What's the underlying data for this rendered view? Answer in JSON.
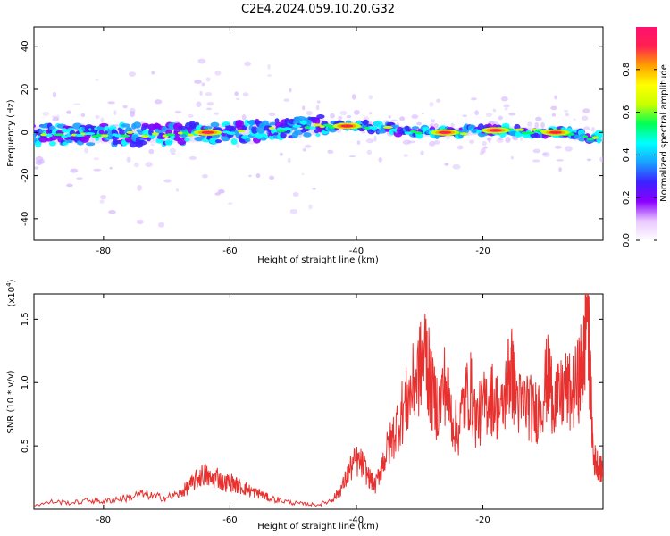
{
  "title": "C2E4.2024.059.10.20.G32",
  "chart_data": [
    {
      "type": "heatmap",
      "xlabel": "Height of straight line (km)",
      "ylabel": "Frequency (Hz)",
      "xlim": [
        -91,
        -1
      ],
      "ylim": [
        -50,
        49
      ],
      "xticks": [
        -80,
        -60,
        -40,
        -20
      ],
      "yticks": [
        -40,
        -20,
        0,
        20,
        40
      ],
      "colorbar": {
        "label": "Normalized spectral amplitude",
        "range": [
          0,
          1
        ],
        "ticks": [
          0.0,
          0.2,
          0.4,
          0.6,
          0.8
        ],
        "colormap": [
          "#ffffff",
          "#e8c8ff",
          "#8a00ff",
          "#3c22ff",
          "#1aa0ff",
          "#00ffff",
          "#00ff55",
          "#c8ff00",
          "#ffff00",
          "#ffa000",
          "#ff2050",
          "#ff1070"
        ]
      },
      "ridge": {
        "description_points_x": [
          -91,
          -80,
          -70,
          -60,
          -50,
          -45,
          -43,
          -40,
          -35,
          -30,
          -25,
          -20,
          -15,
          -10,
          -5,
          -3,
          -1
        ],
        "description_points_y": [
          -1,
          -1,
          -1,
          0,
          2,
          3,
          3,
          3,
          2,
          0,
          0,
          1,
          1,
          0,
          0,
          -3,
          -2
        ],
        "hot_spots_x": [
          -63.5,
          -41.5,
          -26,
          -18,
          -8.5
        ],
        "hot_spots_y": [
          0,
          3,
          0,
          1,
          0
        ]
      }
    },
    {
      "type": "line",
      "xlabel": "Height of straight line (km)",
      "ylabel": "SNR (10 * v/v)",
      "y_multiplier": "(x10",
      "y_multiplier_exp": "4",
      "y_multiplier_close": ")",
      "xlim": [
        -91,
        -1
      ],
      "ylim": [
        0,
        17000
      ],
      "xticks": [
        -80,
        -60,
        -40,
        -20
      ],
      "yticks": [
        5000,
        10000,
        15000
      ],
      "ytick_labels": [
        "0.5",
        "1.0",
        "1.5"
      ],
      "color": "#e8312f",
      "series": [
        {
          "x": [
            -91,
            -88,
            -85,
            -82,
            -80,
            -78,
            -76,
            -74,
            -72,
            -70,
            -68,
            -67,
            -66,
            -65,
            -64,
            -63,
            -62,
            -61,
            -60,
            -59,
            -58,
            -57,
            -56,
            -55,
            -54,
            -52,
            -50,
            -48,
            -46,
            -44,
            -43,
            -42,
            -41,
            -40,
            -39,
            -38,
            -37,
            -36,
            -35,
            -34,
            -33,
            -32,
            -31,
            -30,
            -29,
            -28.5,
            -28,
            -27,
            -26,
            -25,
            -24,
            -23,
            -22,
            -21,
            -20,
            -19,
            -18,
            -17,
            -16,
            -15.5,
            -15,
            -14,
            -13,
            -12,
            -11,
            -10,
            -9.5,
            -9,
            -8,
            -7,
            -6,
            -5,
            -4.5,
            -4,
            -3.5,
            -3,
            -2.5,
            -2,
            -1.5,
            -1
          ],
          "y": [
            300,
            600,
            500,
            700,
            600,
            800,
            900,
            1200,
            1000,
            900,
            1200,
            1600,
            2000,
            2500,
            2800,
            2300,
            2600,
            2000,
            2200,
            1900,
            1700,
            1500,
            1300,
            1200,
            900,
            700,
            500,
            400,
            350,
            700,
            1200,
            2000,
            3200,
            3800,
            3500,
            2500,
            1800,
            3500,
            4800,
            6000,
            7500,
            8500,
            9800,
            11000,
            12500,
            10500,
            9000,
            8000,
            10000,
            7500,
            6000,
            8500,
            9500,
            7000,
            8000,
            9000,
            8500,
            7500,
            10500,
            11000,
            9500,
            8000,
            8500,
            7500,
            8200,
            10000,
            10500,
            9000,
            8500,
            9500,
            9000,
            10000,
            11000,
            12000,
            17000,
            10000,
            4000,
            3700,
            3200,
            3000
          ]
        }
      ]
    }
  ]
}
